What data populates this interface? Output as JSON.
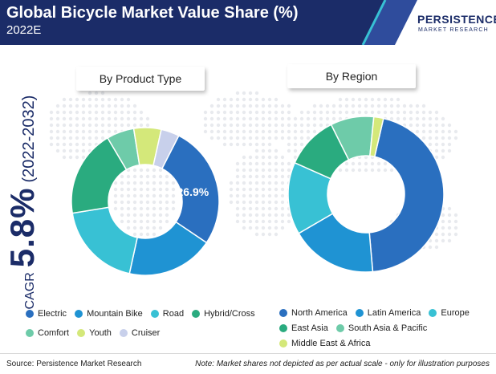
{
  "header": {
    "title": "Global Bicycle Market Value Share (%)",
    "subtitle": "2022E",
    "bg_color": "#1b2c68"
  },
  "logo": {
    "brand": "PERSISTENCE",
    "sub": "MARKET RESEARCH"
  },
  "cagr": {
    "label": "CAGR",
    "value": "5.8%",
    "period": "(2022-2032)"
  },
  "chart_data": [
    {
      "type": "pie",
      "donut": true,
      "title": "By Product Type",
      "categories": [
        "Electric",
        "Mountain Bike",
        "Road",
        "Hybrid/Cross",
        "Comfort",
        "Youth",
        "Cruiser"
      ],
      "values": [
        26.9,
        19,
        19,
        19,
        6,
        6,
        4
      ],
      "colors": [
        "#2a6fbf",
        "#1f93d3",
        "#38c1d4",
        "#2aab7f",
        "#6ecba9",
        "#d4e87a",
        "#c8d0eb"
      ],
      "data_labels": [
        "26.9%",
        "",
        "",
        "",
        "",
        "",
        ""
      ]
    },
    {
      "type": "pie",
      "donut": true,
      "title": "By Region",
      "categories": [
        "North America",
        "Latin America",
        "Europe",
        "East Asia",
        "South Asia & Pacific",
        "Middle East & Africa"
      ],
      "values": [
        45,
        18,
        15,
        11,
        9,
        2
      ],
      "colors": [
        "#2a6fbf",
        "#1f93d3",
        "#38c1d4",
        "#2aab7f",
        "#6ecba9",
        "#d4e87a"
      ],
      "data_labels": [
        "",
        "",
        "",
        "",
        "",
        ""
      ]
    }
  ],
  "legend_product": {
    "row1": [
      "Electric",
      "Mountain Bike",
      "Road",
      "Hybrid/Cross"
    ],
    "row2": [
      "Comfort",
      "Youth",
      "Cruiser"
    ]
  },
  "legend_region": {
    "row1": [
      "North America",
      "Latin America",
      "Europe"
    ],
    "row2": [
      "East Asia",
      "South Asia & Pacific"
    ],
    "row3": [
      "Middle East & Africa"
    ]
  },
  "footer": {
    "source": "Source: Persistence Market Research",
    "note": "Note: Market shares not depicted as per actual scale - only for illustration purposes"
  }
}
